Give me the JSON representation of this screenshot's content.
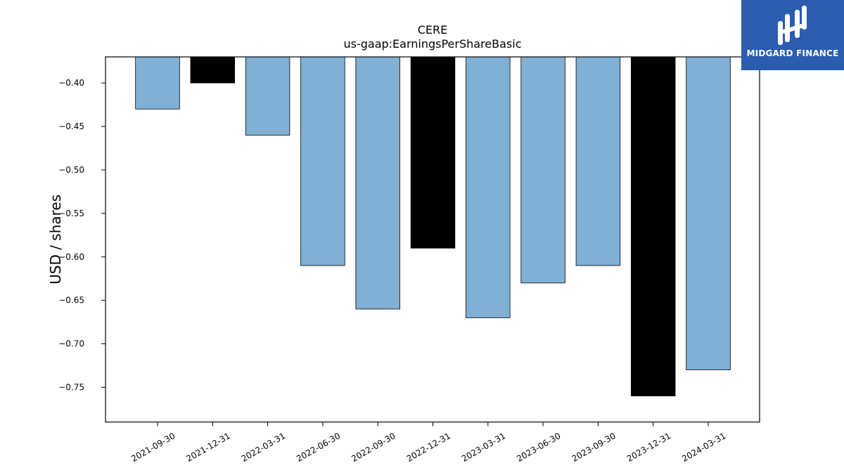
{
  "brand": {
    "name": "MIDGARD FINANCE",
    "background": "#2a5db0"
  },
  "chart_data": {
    "type": "bar",
    "title": "CERE",
    "subtitle": "us-gaap:EarningsPerShareBasic",
    "xlabel": "",
    "ylabel": "USD / shares",
    "categories": [
      "2021-09-30",
      "2021-12-31",
      "2022-03-31",
      "2022-06-30",
      "2022-09-30",
      "2022-12-31",
      "2023-03-31",
      "2023-06-30",
      "2023-09-30",
      "2023-12-31",
      "2024-03-31"
    ],
    "values": [
      -0.43,
      -0.4,
      -0.46,
      -0.61,
      -0.66,
      -0.59,
      -0.67,
      -0.63,
      -0.61,
      -0.76,
      -0.73
    ],
    "bar_colors": [
      "#80b0d4",
      "#000000",
      "#80b0d4",
      "#80b0d4",
      "#80b0d4",
      "#000000",
      "#80b0d4",
      "#80b0d4",
      "#80b0d4",
      "#000000",
      "#80b0d4"
    ],
    "ylim": [
      -0.79,
      -0.37
    ],
    "yticks": [
      -0.4,
      -0.45,
      -0.5,
      -0.55,
      -0.6,
      -0.65,
      -0.7,
      -0.75
    ],
    "ytick_labels": [
      "−0.40",
      "−0.45",
      "−0.50",
      "−0.55",
      "−0.60",
      "−0.65",
      "−0.70",
      "−0.75"
    ],
    "grid": false,
    "legend": "none"
  }
}
